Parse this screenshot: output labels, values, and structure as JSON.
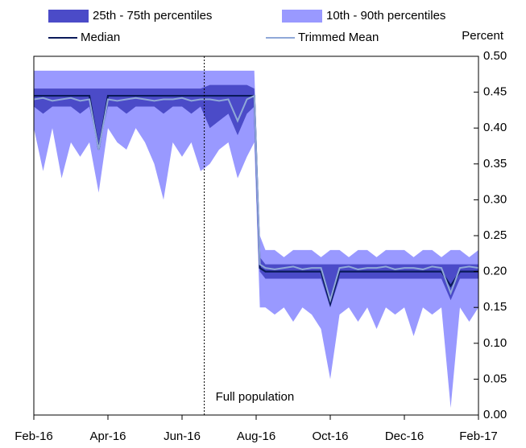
{
  "chart_data": {
    "type": "band-line",
    "yaxis_label": "Percent",
    "x": [
      0,
      0.25,
      0.5,
      0.75,
      1,
      1.25,
      1.5,
      1.75,
      2,
      2.25,
      2.5,
      2.75,
      3,
      3.25,
      3.5,
      3.75,
      4,
      4.25,
      4.5,
      4.75,
      5,
      5.25,
      5.5,
      5.75,
      5.95,
      6.1,
      6.25,
      6.5,
      6.75,
      7,
      7.25,
      7.5,
      7.75,
      8,
      8.25,
      8.5,
      8.75,
      9,
      9.25,
      9.5,
      9.75,
      10,
      10.25,
      10.5,
      10.75,
      11,
      11.25,
      11.5,
      11.75,
      12
    ],
    "series": [
      {
        "name": "10th - 90th percentiles",
        "kind": "band",
        "color": "#9999ff",
        "values": [
          0.48,
          0.48,
          0.48,
          0.48,
          0.48,
          0.48,
          0.48,
          0.48,
          0.48,
          0.48,
          0.48,
          0.48,
          0.48,
          0.48,
          0.48,
          0.48,
          0.48,
          0.48,
          0.48,
          0.48,
          0.48,
          0.48,
          0.48,
          0.48,
          0.48,
          0.25,
          0.23,
          0.23,
          0.22,
          0.23,
          0.23,
          0.23,
          0.22,
          0.23,
          0.23,
          0.22,
          0.23,
          0.23,
          0.22,
          0.23,
          0.23,
          0.23,
          0.22,
          0.23,
          0.23,
          0.22,
          0.23,
          0.23,
          0.22,
          0.23
        ],
        "lower": [
          0.4,
          0.34,
          0.4,
          0.33,
          0.38,
          0.36,
          0.38,
          0.31,
          0.4,
          0.38,
          0.37,
          0.4,
          0.38,
          0.35,
          0.3,
          0.38,
          0.36,
          0.38,
          0.34,
          0.35,
          0.37,
          0.38,
          0.33,
          0.36,
          0.38,
          0.15,
          0.15,
          0.14,
          0.15,
          0.13,
          0.15,
          0.14,
          0.12,
          0.05,
          0.14,
          0.15,
          0.13,
          0.15,
          0.12,
          0.15,
          0.14,
          0.15,
          0.11,
          0.15,
          0.14,
          0.15,
          0.01,
          0.15,
          0.13,
          0.15
        ]
      },
      {
        "name": "25th - 75th percentiles",
        "kind": "band",
        "color": "#4b4bc8",
        "values": [
          0.455,
          0.455,
          0.455,
          0.455,
          0.455,
          0.455,
          0.455,
          0.455,
          0.455,
          0.455,
          0.455,
          0.455,
          0.455,
          0.455,
          0.455,
          0.455,
          0.455,
          0.455,
          0.455,
          0.46,
          0.46,
          0.46,
          0.46,
          0.46,
          0.455,
          0.22,
          0.21,
          0.21,
          0.21,
          0.21,
          0.21,
          0.21,
          0.21,
          0.21,
          0.21,
          0.21,
          0.21,
          0.21,
          0.21,
          0.21,
          0.21,
          0.21,
          0.21,
          0.21,
          0.21,
          0.21,
          0.21,
          0.21,
          0.21,
          0.21
        ],
        "lower": [
          0.43,
          0.42,
          0.43,
          0.43,
          0.43,
          0.42,
          0.43,
          0.37,
          0.43,
          0.43,
          0.42,
          0.43,
          0.43,
          0.43,
          0.42,
          0.43,
          0.43,
          0.42,
          0.43,
          0.4,
          0.41,
          0.42,
          0.39,
          0.42,
          0.43,
          0.2,
          0.19,
          0.19,
          0.19,
          0.19,
          0.19,
          0.19,
          0.19,
          0.15,
          0.19,
          0.19,
          0.19,
          0.19,
          0.19,
          0.19,
          0.19,
          0.19,
          0.19,
          0.19,
          0.19,
          0.19,
          0.16,
          0.19,
          0.19,
          0.19
        ]
      },
      {
        "name": "Median",
        "kind": "line",
        "color": "#0a1a5a",
        "values": [
          0.445,
          0.445,
          0.445,
          0.445,
          0.445,
          0.445,
          0.445,
          0.37,
          0.445,
          0.445,
          0.445,
          0.445,
          0.445,
          0.445,
          0.445,
          0.445,
          0.445,
          0.445,
          0.445,
          0.445,
          0.445,
          0.445,
          0.445,
          0.445,
          0.445,
          0.205,
          0.2,
          0.2,
          0.2,
          0.2,
          0.2,
          0.2,
          0.2,
          0.155,
          0.2,
          0.2,
          0.2,
          0.2,
          0.2,
          0.2,
          0.2,
          0.2,
          0.2,
          0.2,
          0.2,
          0.2,
          0.18,
          0.2,
          0.2,
          0.2
        ]
      },
      {
        "name": "Trimmed Mean",
        "kind": "line",
        "color": "#8fa8d8",
        "values": [
          0.44,
          0.442,
          0.438,
          0.44,
          0.442,
          0.438,
          0.44,
          0.37,
          0.44,
          0.438,
          0.44,
          0.442,
          0.44,
          0.438,
          0.44,
          0.44,
          0.442,
          0.438,
          0.44,
          0.44,
          0.438,
          0.44,
          0.41,
          0.44,
          0.445,
          0.21,
          0.205,
          0.203,
          0.205,
          0.207,
          0.203,
          0.205,
          0.205,
          0.16,
          0.205,
          0.207,
          0.203,
          0.205,
          0.205,
          0.207,
          0.203,
          0.205,
          0.205,
          0.203,
          0.207,
          0.205,
          0.17,
          0.205,
          0.207,
          0.205
        ]
      }
    ],
    "xlim": [
      0,
      12
    ],
    "xticks": [
      {
        "value": 0,
        "label": "Feb-16"
      },
      {
        "value": 2,
        "label": "Apr-16"
      },
      {
        "value": 4,
        "label": "Jun-16"
      },
      {
        "value": 6,
        "label": "Aug-16"
      },
      {
        "value": 8,
        "label": "Oct-16"
      },
      {
        "value": 10,
        "label": "Dec-16"
      },
      {
        "value": 12,
        "label": "Feb-17"
      }
    ],
    "ylim": [
      0,
      0.5
    ],
    "yticks": [
      {
        "value": 0,
        "label": "0.00"
      },
      {
        "value": 0.05,
        "label": "0.05"
      },
      {
        "value": 0.1,
        "label": "0.10"
      },
      {
        "value": 0.15,
        "label": "0.15"
      },
      {
        "value": 0.2,
        "label": "0.20"
      },
      {
        "value": 0.25,
        "label": "0.25"
      },
      {
        "value": 0.3,
        "label": "0.30"
      },
      {
        "value": 0.35,
        "label": "0.35"
      },
      {
        "value": 0.4,
        "label": "0.40"
      },
      {
        "value": 0.45,
        "label": "0.45"
      },
      {
        "value": 0.5,
        "label": "0.50"
      }
    ],
    "annotations": [
      {
        "text": "Full population",
        "x": 4.6
      }
    ]
  }
}
